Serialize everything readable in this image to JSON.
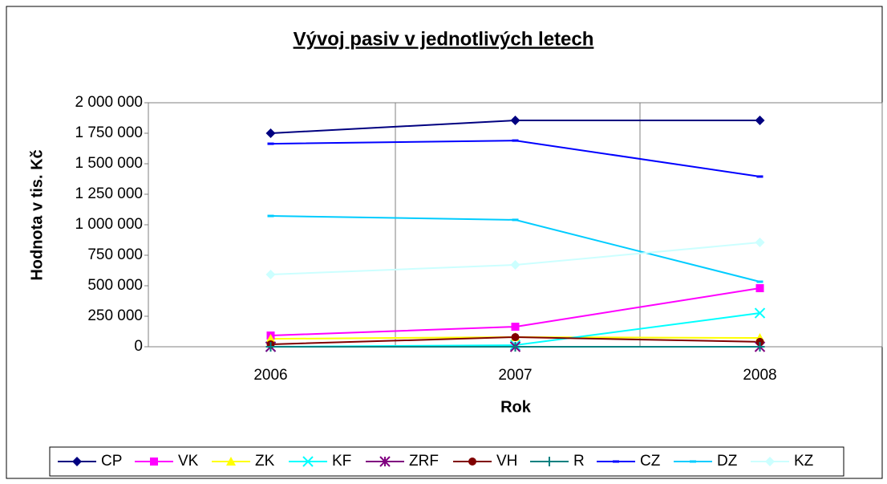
{
  "chart_data": {
    "type": "line",
    "title": "Vývoj pasiv v jednotlivých letech",
    "x_label": "Rok",
    "y_label": "Hodnota v tis. Kč",
    "categories": [
      "2006",
      "2007",
      "2008"
    ],
    "ylim": [
      0,
      2000000
    ],
    "yticks": [
      0,
      {
        "value": 250000,
        "label": "250 000"
      },
      {
        "value": 500000,
        "label": "500 000"
      },
      {
        "value": 750000,
        "label": "750 000"
      },
      {
        "value": 1000000,
        "label": "1 000 000"
      },
      {
        "value": 1250000,
        "label": "1 250 000"
      },
      {
        "value": 1500000,
        "label": "1 500 000"
      },
      {
        "value": 1750000,
        "label": "1 750 000"
      },
      {
        "value": 2000000,
        "label": "2 000 000"
      }
    ],
    "grid": false,
    "legend": "bottom",
    "series": [
      {
        "name": "CP",
        "color": "#000080",
        "marker": "diamond",
        "values": [
          1750000,
          1855000,
          1855000
        ]
      },
      {
        "name": "VK",
        "color": "#ff00ff",
        "marker": "square",
        "values": [
          92000,
          164000,
          480000
        ]
      },
      {
        "name": "ZK",
        "color": "#ffff00",
        "marker": "triangle",
        "values": [
          65000,
          79000,
          72000
        ]
      },
      {
        "name": "KF",
        "color": "#00ffff",
        "marker": "x",
        "values": [
          0,
          13000,
          276000
        ]
      },
      {
        "name": "ZRF",
        "color": "#800080",
        "marker": "star",
        "values": [
          0,
          0,
          0
        ]
      },
      {
        "name": "VH",
        "color": "#800000",
        "marker": "circle",
        "values": [
          20000,
          79000,
          40000
        ]
      },
      {
        "name": "R",
        "color": "#008080",
        "marker": "plus",
        "values": [
          0,
          0,
          0
        ]
      },
      {
        "name": "CZ",
        "color": "#0000ff",
        "marker": "dash",
        "values": [
          1664000,
          1690000,
          1395000
        ]
      },
      {
        "name": "DZ",
        "color": "#00ccff",
        "marker": "dash",
        "values": [
          1072000,
          1040000,
          533000
        ]
      },
      {
        "name": "KZ",
        "color": "#ccffff",
        "marker": "diamond",
        "values": [
          592000,
          671000,
          855000
        ]
      }
    ]
  }
}
